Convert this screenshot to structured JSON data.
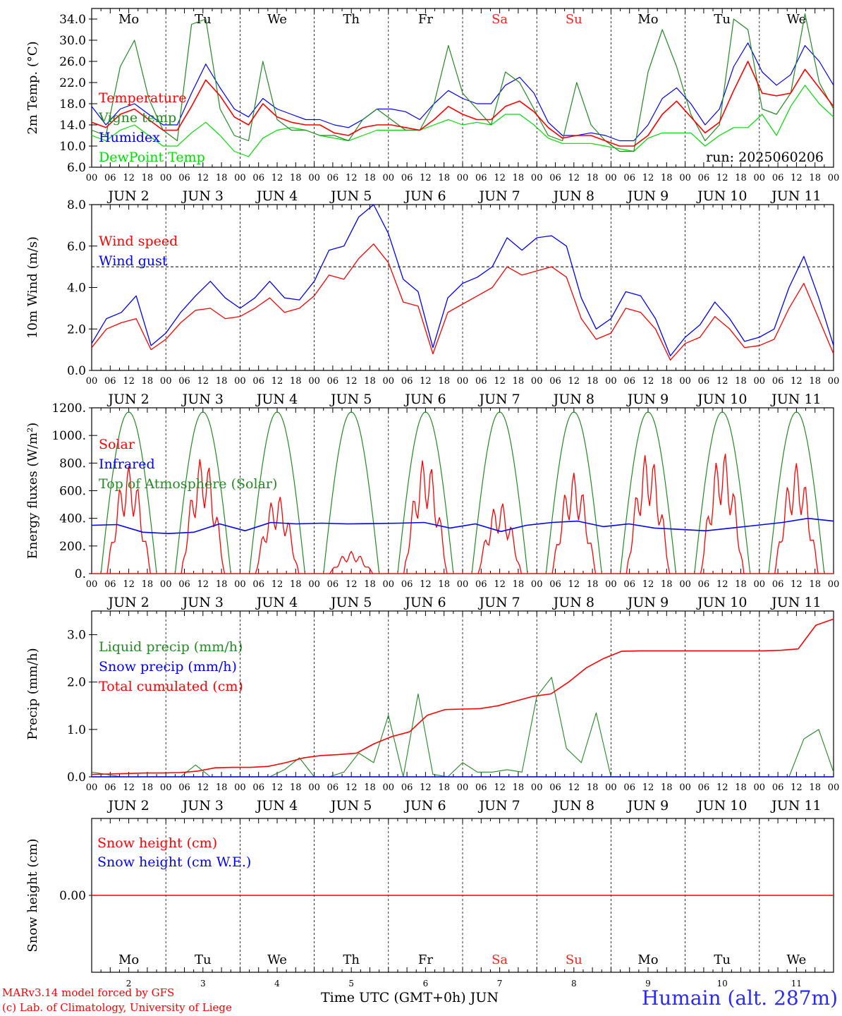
{
  "footer": {
    "model_credit": "MARv3.14 model forced by GFS",
    "lab_credit": "(c) Lab. of Climatology, University of Liege",
    "xaxis_title": "Time UTC (GMT+0h) JUN",
    "station": "Humain (alt. 287m)"
  },
  "days": {
    "names": [
      "Mo",
      "Tu",
      "We",
      "Th",
      "Fr",
      "Sa",
      "Su",
      "Mo",
      "Tu",
      "We"
    ],
    "weekend_color": "#ff2020",
    "weekend_days": [
      "Sa",
      "Su"
    ],
    "dates": [
      "JUN  2",
      "JUN  3",
      "JUN  4",
      "JUN  5",
      "JUN  6",
      "JUN  7",
      "JUN  8",
      "JUN  9",
      "JUN 10",
      "JUN 11"
    ],
    "date_numbers": [
      "2",
      "3",
      "4",
      "5",
      "6",
      "7",
      "8",
      "9",
      "10",
      "11"
    ],
    "hour_ticks": [
      "00",
      "06",
      "12",
      "18"
    ]
  },
  "colors": {
    "temperature": "#ff0000",
    "vigne": "#228b22",
    "humidex": "#0000ff",
    "dewpoint": "#00dd00",
    "wind": "#ff0000",
    "gust": "#0000ff",
    "solar": "#ff0000",
    "infrared": "#0000ff",
    "toa": "#228b22",
    "liquid": "#228b22",
    "snow_precip": "#0000ff",
    "cumul": "#ff0000"
  },
  "chart_data": [
    {
      "type": "line",
      "panel": "temperature",
      "ylabel": "2m Temp. (°C)",
      "run_label": "run: 2025060206",
      "ylim": [
        6.0,
        36.0
      ],
      "yticks": [
        "6.0",
        "10.0",
        "14.0",
        "18.0",
        "22.0",
        "26.0",
        "30.0",
        "34.0"
      ],
      "x_unit": "hours since 2025-06-02 00 UTC, step 6h",
      "show_day_names": true,
      "series": [
        {
          "name": "Temperature",
          "key": "temperature",
          "values": [
            14.5,
            13.5,
            16,
            17,
            15,
            13,
            13,
            17.5,
            22.5,
            19.5,
            15.5,
            14,
            18,
            15.5,
            14.5,
            14,
            14,
            12.5,
            12,
            13.5,
            14,
            14,
            13.5,
            13,
            15,
            17.5,
            16,
            15,
            15,
            17.5,
            18.5,
            16.5,
            13.5,
            11.5,
            12,
            12,
            11,
            10,
            10,
            12,
            16,
            18.5,
            15.5,
            12.5,
            14.5,
            20.5,
            26,
            20,
            19.5,
            20,
            24.5,
            21,
            17.5
          ]
        },
        {
          "name": "Vigne temp",
          "key": "vigne",
          "values": [
            13,
            12,
            25,
            30,
            19,
            13,
            11,
            33,
            34,
            17,
            12,
            11,
            26,
            15,
            13,
            13,
            12,
            12,
            11,
            15,
            17,
            15,
            13,
            13,
            18,
            29,
            20,
            17,
            14,
            24,
            22,
            17,
            12,
            11,
            22,
            14,
            11,
            9,
            9,
            24,
            32,
            25,
            16,
            11,
            14,
            34,
            32,
            17,
            16,
            20,
            35,
            22,
            17
          ]
        },
        {
          "name": "Humidex",
          "key": "humidex",
          "values": [
            17.5,
            14,
            17,
            18,
            16,
            14,
            14,
            20,
            25.5,
            21,
            17,
            15.5,
            19,
            17,
            16,
            15,
            15,
            14,
            13.5,
            15,
            17,
            17,
            16.5,
            15,
            18,
            20.5,
            19,
            18,
            18,
            21.5,
            23,
            20,
            14.5,
            12,
            12,
            12.5,
            12,
            11,
            11,
            14,
            19,
            21,
            18,
            14,
            17,
            25,
            29.5,
            24,
            21.5,
            23.5,
            29,
            26,
            21.5
          ]
        },
        {
          "name": "DewPoint Temp",
          "key": "dewpoint",
          "values": [
            12,
            11,
            13,
            14,
            12,
            10,
            10,
            12.5,
            14.5,
            12,
            9,
            8,
            11.5,
            13,
            13.5,
            13,
            12,
            11.5,
            11,
            12,
            13,
            13,
            13,
            13,
            14,
            15,
            14,
            14.5,
            14,
            16,
            16,
            14,
            11.5,
            10.5,
            10.5,
            10.5,
            10,
            9.5,
            9,
            11.5,
            12.5,
            12.5,
            12.5,
            10,
            12,
            13.5,
            13.5,
            16,
            12,
            17.5,
            21.5,
            18,
            15.5
          ]
        }
      ]
    },
    {
      "type": "line",
      "panel": "wind",
      "ylabel": "10m Wind (m/s)",
      "ylim": [
        0.0,
        8.0
      ],
      "yticks": [
        "0.0",
        "2.0",
        "4.0",
        "6.0",
        "8.0"
      ],
      "reference_line": 5.0,
      "series": [
        {
          "name": "Wind speed",
          "key": "wind",
          "values": [
            1.1,
            2.0,
            2.3,
            2.5,
            1.0,
            1.5,
            2.3,
            2.9,
            3.0,
            2.5,
            2.6,
            3.0,
            3.5,
            2.8,
            3.0,
            3.6,
            4.6,
            4.4,
            5.4,
            6.1,
            5.2,
            3.3,
            3.1,
            0.8,
            2.8,
            3.2,
            3.6,
            4.0,
            5.0,
            4.6,
            4.8,
            5.0,
            4.5,
            2.5,
            1.5,
            1.8,
            3.0,
            2.8,
            2.0,
            0.5,
            1.3,
            1.6,
            2.6,
            2.0,
            1.1,
            1.2,
            1.5,
            3.0,
            4.2,
            2.5,
            0.8
          ]
        },
        {
          "name": "Wind gust",
          "key": "gust",
          "values": [
            1.3,
            2.5,
            2.8,
            3.6,
            1.2,
            1.8,
            2.8,
            3.6,
            4.3,
            3.5,
            3.0,
            3.5,
            4.3,
            3.5,
            3.4,
            4.3,
            5.8,
            6.0,
            7.4,
            8.0,
            6.6,
            4.4,
            3.8,
            1.1,
            3.5,
            4.2,
            4.5,
            5.0,
            6.4,
            5.8,
            6.4,
            6.5,
            6.0,
            3.5,
            2.0,
            2.5,
            3.8,
            3.6,
            2.5,
            0.7,
            1.6,
            2.2,
            3.3,
            2.5,
            1.4,
            1.6,
            2.0,
            4.0,
            5.5,
            3.5,
            1.2
          ]
        }
      ]
    },
    {
      "type": "line",
      "panel": "energy",
      "ylabel": "Energy fluxes (W/m²)",
      "ylim": [
        0,
        1200
      ],
      "yticks": [
        "0.",
        "200.",
        "400.",
        "600.",
        "800.",
        "1000.",
        "1200."
      ],
      "series": [
        {
          "name": "Solar",
          "key": "solar",
          "peaks": [
            780,
            850,
            570,
            160,
            840,
            520,
            730,
            880,
            890,
            800
          ]
        },
        {
          "name": "Infrared",
          "key": "infrared",
          "values": [
            350,
            355,
            300,
            290,
            300,
            360,
            310,
            370,
            360,
            365,
            360,
            362,
            365,
            370,
            330,
            360,
            305,
            350,
            370,
            380,
            340,
            360,
            330,
            320,
            310,
            330,
            350,
            370,
            400,
            380
          ]
        },
        {
          "name": "Top of Atmosphere (Solar)",
          "key": "toa",
          "daily_peak": 1170
        }
      ]
    },
    {
      "type": "line",
      "panel": "precip",
      "ylabel": "Precip (mm/h)",
      "ylim": [
        0.0,
        3.5
      ],
      "yticks": [
        "0.0",
        "1.0",
        "2.0",
        "3.0"
      ],
      "series": [
        {
          "name": "Liquid precip (mm/h)",
          "key": "liquid",
          "values": [
            0.1,
            0.05,
            0,
            0,
            0,
            0,
            0,
            0.25,
            0,
            0,
            0,
            0,
            0,
            0.15,
            0.4,
            0,
            0,
            0.1,
            0.5,
            0.3,
            1.3,
            0,
            1.75,
            0.05,
            0,
            0.3,
            0.1,
            0.1,
            0.15,
            0.1,
            1.7,
            2.1,
            0.6,
            0.3,
            1.35,
            0,
            0,
            0,
            0,
            0,
            0,
            0,
            0,
            0,
            0,
            0,
            0,
            0,
            0.8,
            1.0,
            0.1
          ]
        },
        {
          "name": "Snow precip (mm/h)",
          "key": "snow_precip",
          "values": [
            0,
            0,
            0
          ]
        },
        {
          "name": "Total cumulated (cm)",
          "key": "cumul",
          "values": [
            0.05,
            0.06,
            0.07,
            0.08,
            0.08,
            0.09,
            0.12,
            0.19,
            0.2,
            0.2,
            0.22,
            0.3,
            0.4,
            0.45,
            0.47,
            0.5,
            0.7,
            0.85,
            0.95,
            1.3,
            1.42,
            1.43,
            1.44,
            1.5,
            1.6,
            1.7,
            1.75,
            2.0,
            2.3,
            2.5,
            2.65,
            2.66,
            2.66,
            2.66,
            2.66,
            2.66,
            2.66,
            2.66,
            2.66,
            2.67,
            2.7,
            3.2,
            3.33
          ]
        }
      ]
    },
    {
      "type": "line",
      "panel": "snow",
      "ylabel": "Snow height (cm)",
      "ylim": [
        -1,
        1
      ],
      "yticks": [
        "0.00"
      ],
      "show_day_names": true,
      "series": [
        {
          "name": "Snow height (cm)",
          "key": "cumul",
          "values": [
            0,
            0
          ]
        },
        {
          "name": "Snow height (cm W.E.)",
          "key": "snow_precip",
          "values": []
        }
      ]
    }
  ]
}
